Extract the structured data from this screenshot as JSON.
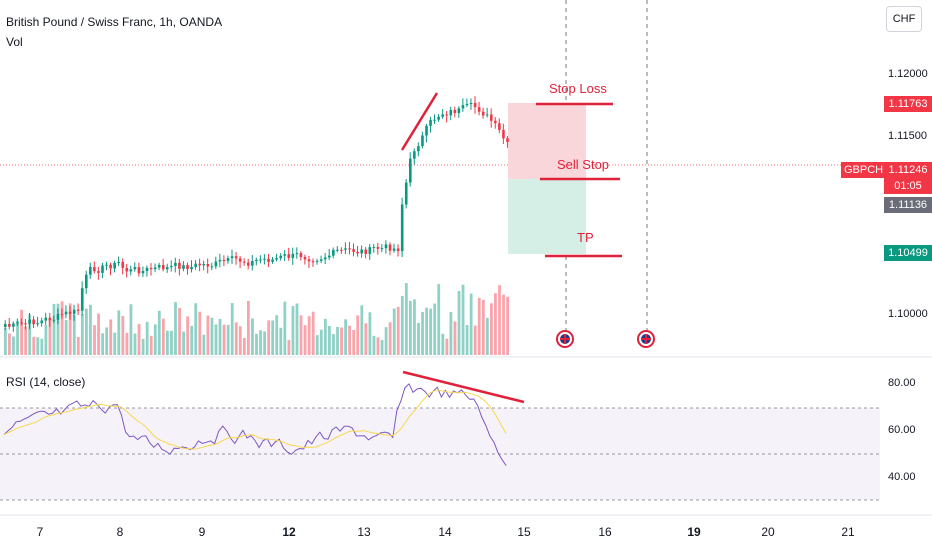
{
  "header": {
    "title": "British Pound / Swiss Franc, 1h, OANDA",
    "volume_label": "Vol",
    "rsi_label": "RSI (14, close)"
  },
  "currency_button": "CHF",
  "price_badges": {
    "stop_loss_price": "1.11763",
    "symbol": "GBPCHF",
    "current_price": "1.11246",
    "countdown": "01:05",
    "gray_price": "1.11136",
    "tp_price": "1.10499"
  },
  "price_axis": [
    "1.12000",
    "1.11500",
    "1.10000"
  ],
  "rsi_axis": [
    "80.00",
    "60.00",
    "40.00"
  ],
  "time_axis": [
    "7",
    "8",
    "9",
    "12",
    "13",
    "14",
    "15",
    "16",
    "19",
    "20",
    "21"
  ],
  "annotations": {
    "stop_loss": "Stop Loss",
    "sell_stop": "Sell Stop",
    "tp": "TP"
  },
  "events": [
    "uk-flag-icon",
    "uk-flag-icon"
  ],
  "colors": {
    "up": "#089981",
    "down": "#f23645",
    "annotation": "#e0213a",
    "rsi_line": "#7e57c2",
    "rsi_ma": "#f7d84b",
    "sl_zone": "#f9d6d9",
    "tp_zone": "#d5efe6"
  }
}
